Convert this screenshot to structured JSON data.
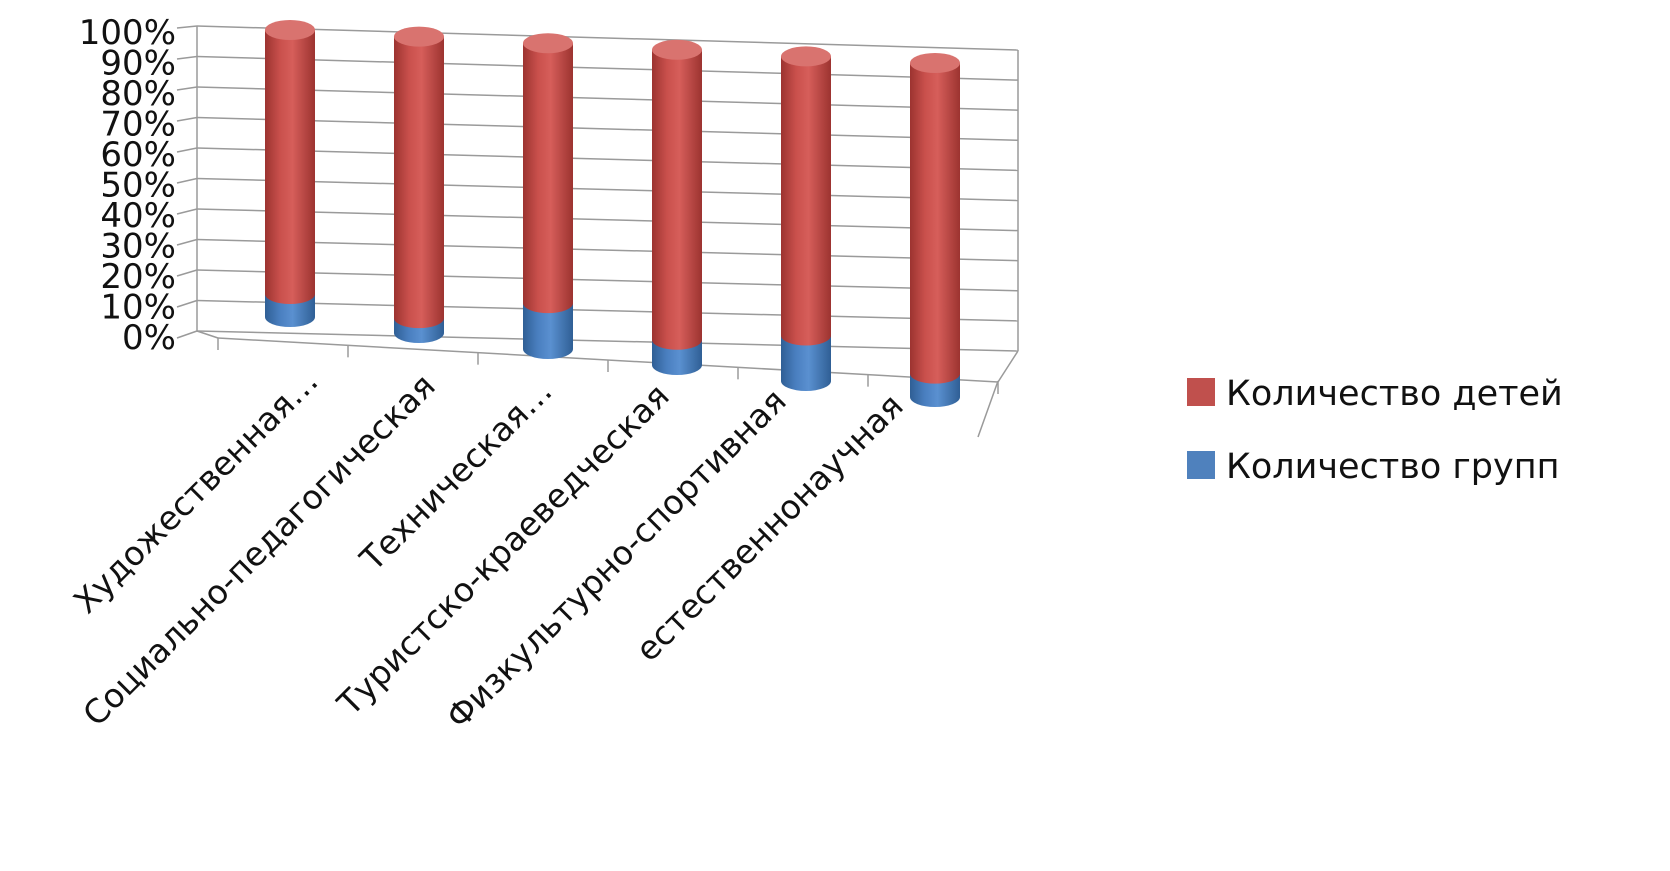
{
  "chart_data": {
    "type": "bar",
    "style": "3d-stacked-cylinder-100-percent",
    "categories": [
      "Художественная…",
      "Социально-педагогическая",
      "Техническая…",
      "Туристско-краеведческая",
      "Физкультурно-спортивная",
      "естественнонаучная"
    ],
    "series": [
      {
        "name": "Количество детей",
        "color": "#c0504d",
        "values": [
          92,
          95,
          85,
          92,
          86,
          93
        ]
      },
      {
        "name": "Количество групп",
        "color": "#4f81bd",
        "values": [
          8,
          5,
          15,
          8,
          14,
          7
        ]
      }
    ],
    "y_ticks": [
      "0%",
      "10%",
      "20%",
      "30%",
      "40%",
      "50%",
      "60%",
      "70%",
      "80%",
      "90%",
      "100%"
    ],
    "ylim": [
      0,
      100
    ],
    "grid": true,
    "legend": "right"
  }
}
